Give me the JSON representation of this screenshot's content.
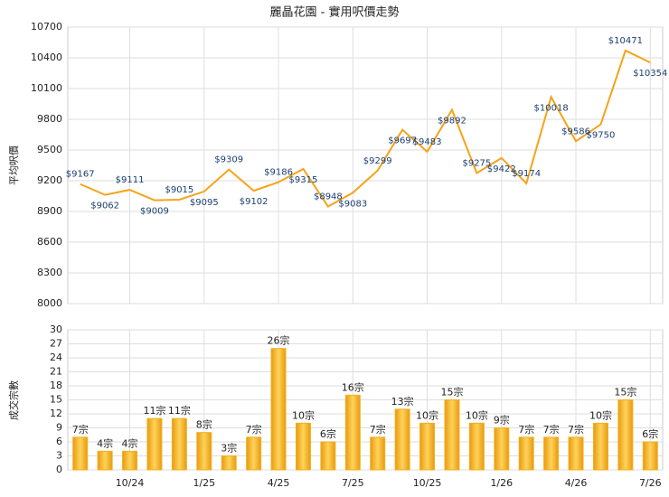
{
  "chart_data": [
    {
      "type": "line",
      "title": "麗晶花園 - 實用呎價走勢",
      "ylabel": "平均呎價",
      "color": "#f5a31a",
      "values": [
        9167,
        9062,
        9111,
        9009,
        9015,
        9095,
        9309,
        9102,
        9186,
        9315,
        8948,
        9083,
        9299,
        9697,
        9483,
        9892,
        9275,
        9422,
        9174,
        10018,
        9586,
        9750,
        10471,
        10354
      ],
      "value_labels": [
        "$9167",
        "$9062",
        "$9111",
        "$9009",
        "$9015",
        "$9095",
        "$9309",
        "$9102",
        "$9186",
        "$9315",
        "$8948",
        "$9083",
        "$9299",
        "$9697",
        "$9483",
        "$9892",
        "$9275",
        "$9422",
        "$9174",
        "$10018",
        "$9586",
        "$9750",
        "$10471",
        "$10354"
      ],
      "ylim": [
        8000,
        10700
      ],
      "yticks": [
        8000,
        8300,
        8600,
        8900,
        9200,
        9500,
        9800,
        10100,
        10400,
        10700
      ],
      "grid": true
    },
    {
      "type": "bar",
      "ylabel": "成交宗數",
      "color": "#f2b01e",
      "categories": [
        null,
        null,
        "10/24",
        null,
        null,
        "1/25",
        null,
        null,
        "4/25",
        null,
        null,
        "7/25",
        null,
        null,
        "10/25",
        null,
        null,
        "1/26",
        null,
        null,
        "4/26",
        null,
        null,
        "7/26"
      ],
      "values": [
        7,
        4,
        4,
        11,
        11,
        8,
        3,
        7,
        26,
        10,
        6,
        16,
        7,
        13,
        10,
        15,
        10,
        9,
        7,
        7,
        7,
        10,
        15,
        6
      ],
      "value_labels": [
        "7宗",
        "4宗",
        "4宗",
        "11宗",
        "11宗",
        "8宗",
        "3宗",
        "7宗",
        "26宗",
        "10宗",
        "6宗",
        "16宗",
        "7宗",
        "13宗",
        "10宗",
        "15宗",
        "10宗",
        "9宗",
        "7宗",
        "7宗",
        "7宗",
        "10宗",
        "15宗",
        "6宗"
      ],
      "ylim": [
        0,
        30
      ],
      "yticks": [
        0,
        3,
        6,
        9,
        12,
        15,
        18,
        21,
        24,
        27,
        30
      ],
      "grid": true
    }
  ]
}
